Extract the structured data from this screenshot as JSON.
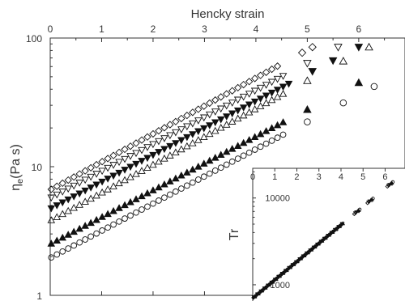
{
  "chart_data": [
    {
      "type": "scatter",
      "title": "",
      "xlabel": "Hencky strain",
      "xlabel_position": "top",
      "ylabel_main": "η",
      "ylabel_sub": "e",
      "ylabel_unit": "(Pa s)",
      "xlim": [
        0,
        6.9
      ],
      "ylim": [
        1,
        100
      ],
      "yscale": "log",
      "x_ticks": [
        "0",
        "1",
        "2",
        "3",
        "4",
        "5",
        "6"
      ],
      "y_ticks": [
        "1",
        "10",
        "100"
      ],
      "grid": false,
      "legend": "none",
      "series": [
        {
          "marker": "diamond-open",
          "start": [
            0,
            6.6
          ],
          "end": [
            5.1,
            85
          ],
          "sparse_x": [
            4.9,
            5.1
          ]
        },
        {
          "marker": "triangle-down-open",
          "start": [
            0,
            5.7
          ],
          "end": [
            5.6,
            85
          ],
          "sparse_x": [
            5.0,
            5.6
          ]
        },
        {
          "marker": "triangle-down-filled",
          "start": [
            0,
            4.7
          ],
          "end": [
            6.0,
            85
          ],
          "sparse_x": [
            5.1,
            5.5,
            6.0
          ]
        },
        {
          "marker": "triangle-up-open",
          "start": [
            0,
            3.8
          ],
          "end": [
            6.2,
            85
          ],
          "sparse_x": [
            5.0,
            5.7,
            6.2
          ]
        },
        {
          "marker": "triangle-up-filled",
          "start": [
            0,
            2.5
          ],
          "end": [
            6.0,
            45
          ],
          "sparse_x": [
            5.0,
            6.0
          ]
        },
        {
          "marker": "circle-open",
          "start": [
            0,
            1.95
          ],
          "end": [
            6.3,
            42
          ],
          "sparse_x": [
            5.0,
            5.7,
            6.3
          ]
        }
      ]
    },
    {
      "type": "scatter",
      "title": "",
      "xlabel": "",
      "ylabel": "Tr",
      "xlim": [
        0,
        6.9
      ],
      "ylim": [
        650,
        22000
      ],
      "yscale": "log",
      "x_ticks": [
        "0",
        "1",
        "2",
        "3",
        "4",
        "5",
        "6"
      ],
      "y_ticks": [
        "1000",
        "10000"
      ],
      "grid": false,
      "legend": "none",
      "collapsed_curve": {
        "start": [
          0,
          700
        ],
        "end": [
          6.9,
          20000
        ]
      }
    }
  ]
}
